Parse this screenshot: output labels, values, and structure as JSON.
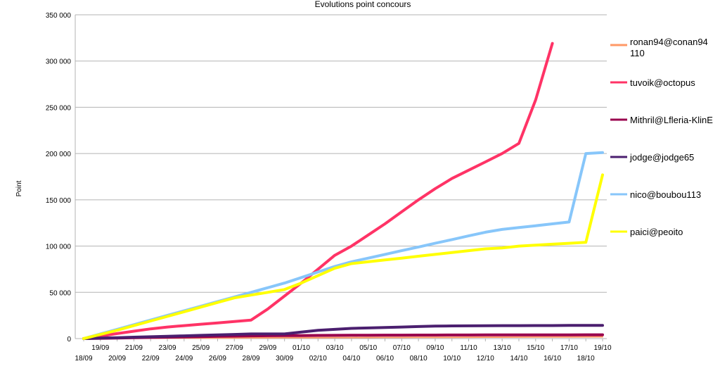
{
  "chart_data": {
    "type": "line",
    "title": "Evolutions point concours",
    "xlabel": "",
    "ylabel": "Point",
    "ylim": [
      0,
      350000
    ],
    "yticks": [
      "0",
      "50 000",
      "100 000",
      "150 000",
      "200 000",
      "250 000",
      "300 000",
      "350 000"
    ],
    "grid": true,
    "legend": "right",
    "categories": [
      "18/09",
      "19/09",
      "20/09",
      "21/09",
      "22/09",
      "23/09",
      "24/09",
      "25/09",
      "26/09",
      "27/09",
      "28/09",
      "29/09",
      "30/09",
      "01/10",
      "02/10",
      "03/10",
      "04/10",
      "05/10",
      "06/10",
      "07/10",
      "08/10",
      "09/10",
      "10/10",
      "11/10",
      "12/10",
      "13/10",
      "14/10",
      "15/10",
      "16/10",
      "17/10",
      "18/10",
      "19/10"
    ],
    "series": [
      {
        "name": "ronan94@conan94110",
        "color": "#ff9966",
        "width": 2,
        "values": [
          0,
          100,
          200,
          300,
          400,
          500,
          550,
          600,
          650,
          700,
          800,
          850,
          900,
          950,
          1000,
          1050,
          1100,
          1150,
          1200,
          1250,
          1300,
          1350,
          1400,
          1450,
          1500,
          1550,
          1600,
          1650,
          1700,
          1750,
          1800,
          1900
        ]
      },
      {
        "name": "tuvoik@octopus",
        "color": "#ff3366",
        "width": 4,
        "values": [
          0,
          2700,
          5400,
          8000,
          10500,
          12500,
          14000,
          15500,
          17000,
          18500,
          20000,
          32000,
          46000,
          60000,
          75000,
          90000,
          100000,
          112000,
          124000,
          137000,
          150000,
          162000,
          173000,
          182000,
          191000,
          200000,
          211000,
          258000,
          319000,
          null,
          null,
          null
        ]
      },
      {
        "name": "Mithril@Lfleria-KlinE",
        "color": "#99004d",
        "width": 4,
        "values": [
          0,
          300,
          600,
          900,
          1200,
          1500,
          1800,
          2100,
          2400,
          2700,
          3000,
          3100,
          3200,
          3300,
          3400,
          3500,
          3600,
          3600,
          3700,
          3700,
          3800,
          3800,
          3900,
          3900,
          3950,
          4000,
          4000,
          4000,
          4050,
          4050,
          4100,
          4100
        ]
      },
      {
        "name": "jodge@jodge65",
        "color": "#4b1f6f",
        "width": 4,
        "values": [
          0,
          500,
          1000,
          1500,
          2000,
          2500,
          3000,
          3500,
          4000,
          4500,
          5000,
          5000,
          5000,
          7000,
          9000,
          10000,
          11000,
          11500,
          12000,
          12500,
          13000,
          13500,
          13700,
          13800,
          13900,
          14000,
          14000,
          14100,
          14100,
          14200,
          14300,
          14300
        ]
      },
      {
        "name": "nico@boubou113",
        "color": "#87c6fa",
        "width": 4,
        "values": [
          0,
          5000,
          10000,
          15000,
          20000,
          25000,
          30000,
          35000,
          40000,
          45000,
          50000,
          55000,
          60000,
          66000,
          72000,
          78000,
          83000,
          87000,
          91000,
          95000,
          99000,
          103000,
          107000,
          111000,
          115000,
          118000,
          120000,
          122000,
          124000,
          126000,
          200000,
          201000
        ]
      },
      {
        "name": "paici@peoito",
        "color": "#ffff00",
        "width": 4,
        "values": [
          0,
          4500,
          9000,
          14000,
          19000,
          24000,
          29000,
          34000,
          39000,
          44000,
          47000,
          50000,
          53000,
          60000,
          68000,
          76000,
          81000,
          83000,
          85000,
          87000,
          89000,
          91000,
          93000,
          95000,
          97000,
          98000,
          100000,
          101000,
          102000,
          103000,
          104000,
          177000
        ]
      }
    ]
  }
}
